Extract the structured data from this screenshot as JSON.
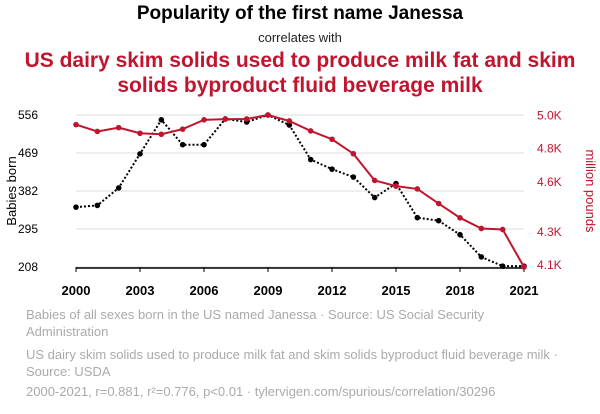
{
  "header": {
    "title": "Popularity of the first name Janessa",
    "subtitle": "correlates with",
    "title2": "US dairy skim solids used to produce milk fat and skim solids byproduct fluid beverage milk"
  },
  "chart_data": {
    "type": "line",
    "x": [
      2000,
      2001,
      2002,
      2003,
      2004,
      2005,
      2006,
      2007,
      2008,
      2009,
      2010,
      2011,
      2012,
      2013,
      2014,
      2015,
      2016,
      2017,
      2018,
      2019,
      2020,
      2021
    ],
    "x_ticks": [
      "2000",
      "2003",
      "2006",
      "2009",
      "2012",
      "2015",
      "2018",
      "2021"
    ],
    "x_tick_values": [
      2000,
      2003,
      2006,
      2009,
      2012,
      2015,
      2018,
      2021
    ],
    "series": [
      {
        "name": "Babies of all sexes born in the US named Janessa · Source: US Social Security Administration",
        "axis": "left",
        "color": "#000000",
        "style": "dotted",
        "values": [
          345,
          349,
          389,
          467,
          545,
          488,
          488,
          547,
          540,
          556,
          533,
          454,
          432,
          414,
          367,
          399,
          321,
          314,
          282,
          231,
          210,
          210
        ]
      },
      {
        "name": "US dairy skim solids used to produce milk fat and skim solids byproduct fluid beverage milk · Source: USDA",
        "axis": "right",
        "color": "#c0152f",
        "style": "solid",
        "values": [
          4945,
          4904,
          4927,
          4893,
          4887,
          4918,
          4974,
          4978,
          4979,
          5003,
          4967,
          4907,
          4857,
          4770,
          4609,
          4575,
          4558,
          4470,
          4384,
          4320,
          4314,
          4088
        ]
      }
    ],
    "ylabel": "Babies born",
    "y_ticks": [
      "208",
      "295",
      "382",
      "469",
      "556"
    ],
    "y_tick_values": [
      208,
      295,
      382,
      469,
      556
    ],
    "ylim": [
      208,
      556
    ],
    "y2label": "million pounds",
    "y2_ticks": [
      "4.1K",
      "4.3K",
      "4.6K",
      "4.8K",
      "5.0K"
    ],
    "y2_tick_values": [
      4100,
      4300,
      4600,
      4800,
      5000
    ],
    "y2lim": [
      4088,
      5003
    ],
    "grid": "horizontal",
    "footer": "2000-2021, r=0.881, r²=0.776, p<0.01 · tylervigen.com/spurious/correlation/30296"
  },
  "colors": {
    "accent": "#c0152f",
    "series1": "#000000",
    "legend_text": "#aaaaaa",
    "grid": "#dddddd"
  }
}
